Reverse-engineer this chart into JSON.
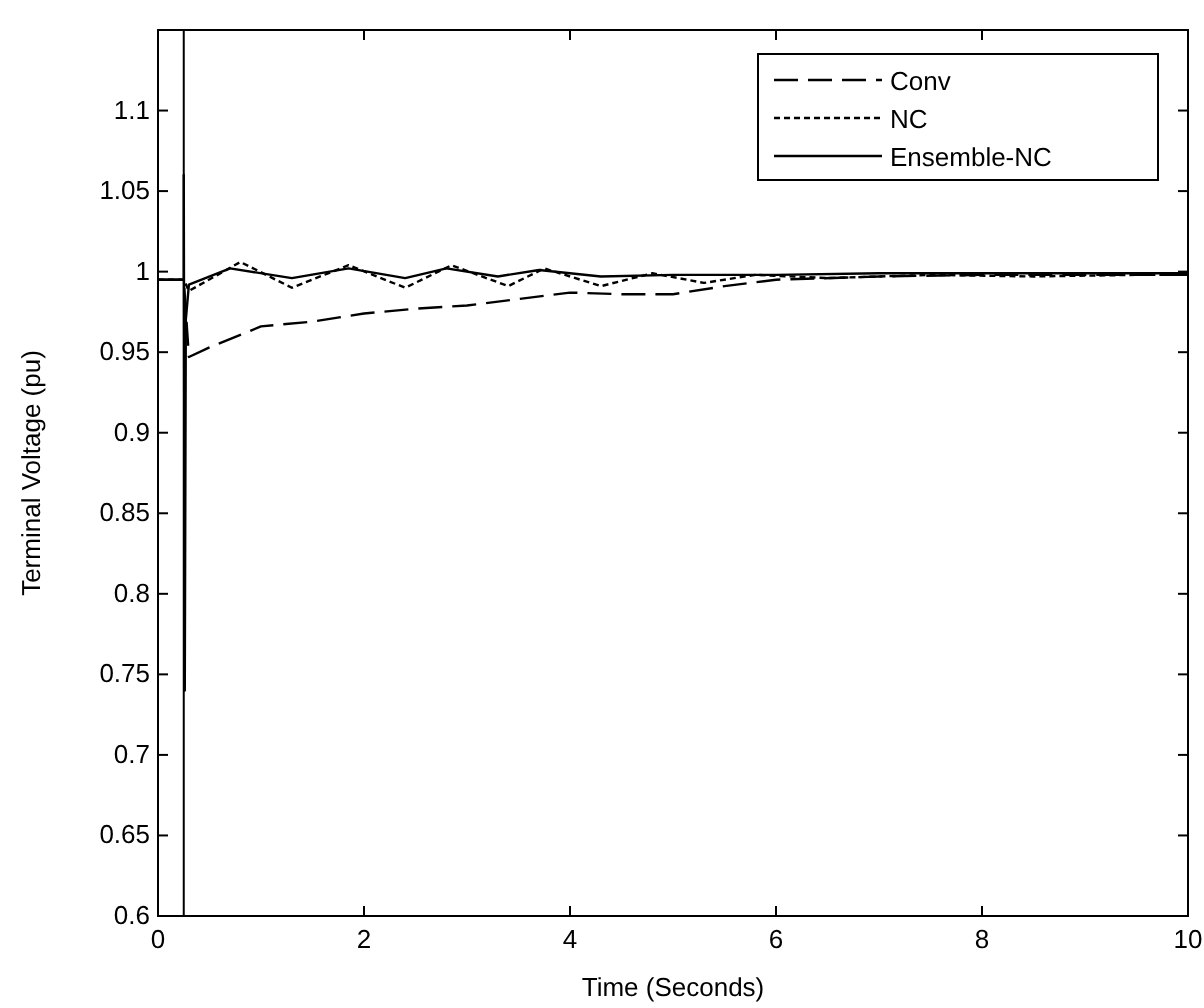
{
  "chart_data": {
    "type": "line",
    "xlabel": "Time (Seconds)",
    "ylabel": "Terminal Voltage (pu)",
    "xlim": [
      0,
      10
    ],
    "ylim": [
      0.6,
      1.15
    ],
    "xticks": [
      0,
      2,
      4,
      6,
      8,
      10
    ],
    "yticks": [
      0.6,
      0.65,
      0.7,
      0.75,
      0.8,
      0.85,
      0.9,
      0.95,
      1,
      1.05,
      1.1
    ],
    "grid": false,
    "legend": "top right",
    "ref_lines": [
      {
        "axis": "x",
        "value": 0.25,
        "label": null,
        "color": "#000000"
      }
    ],
    "series": [
      {
        "name": "Conv",
        "color": "#000000",
        "line_style": "dashed",
        "x": [
          0,
          0.25,
          0.3,
          0.5,
          1,
          1.5,
          2,
          2.5,
          3,
          3.5,
          4,
          4.5,
          5,
          5.5,
          6,
          7,
          8,
          9,
          10
        ],
        "values": [
          0.995,
          0.995,
          0.947,
          0.953,
          0.966,
          0.969,
          0.974,
          0.977,
          0.979,
          0.983,
          0.987,
          0.986,
          0.986,
          0.991,
          0.995,
          0.997,
          0.998,
          0.998,
          0.998
        ]
      },
      {
        "name": "NC",
        "color": "#000000",
        "line_style": "dotted",
        "x": [
          0,
          0.25,
          0.3,
          0.8,
          1.3,
          1.85,
          2.4,
          2.85,
          3.4,
          3.75,
          4.3,
          4.8,
          5.3,
          5.8,
          6.5,
          7.5,
          8.5,
          9.5,
          10
        ],
        "values": [
          0.995,
          0.995,
          0.988,
          1.006,
          0.99,
          1.004,
          0.99,
          1.004,
          0.991,
          1.002,
          0.991,
          0.999,
          0.993,
          0.998,
          0.996,
          0.998,
          0.997,
          0.998,
          0.998
        ]
      },
      {
        "name": "Ensemble-NC",
        "color": "#000000",
        "line_style": "solid",
        "x": [
          0,
          0.25,
          0.25,
          0.26,
          0.27,
          0.3,
          0.7,
          1.3,
          1.85,
          2.4,
          2.8,
          3.3,
          3.7,
          4.3,
          5,
          6,
          7,
          8,
          9,
          10
        ],
        "values": [
          0.995,
          0.995,
          1.06,
          0.74,
          0.97,
          0.992,
          1.002,
          0.996,
          1.002,
          0.996,
          1.002,
          0.997,
          1.001,
          0.997,
          0.998,
          0.998,
          0.999,
          0.999,
          0.999,
          0.999
        ]
      }
    ]
  }
}
